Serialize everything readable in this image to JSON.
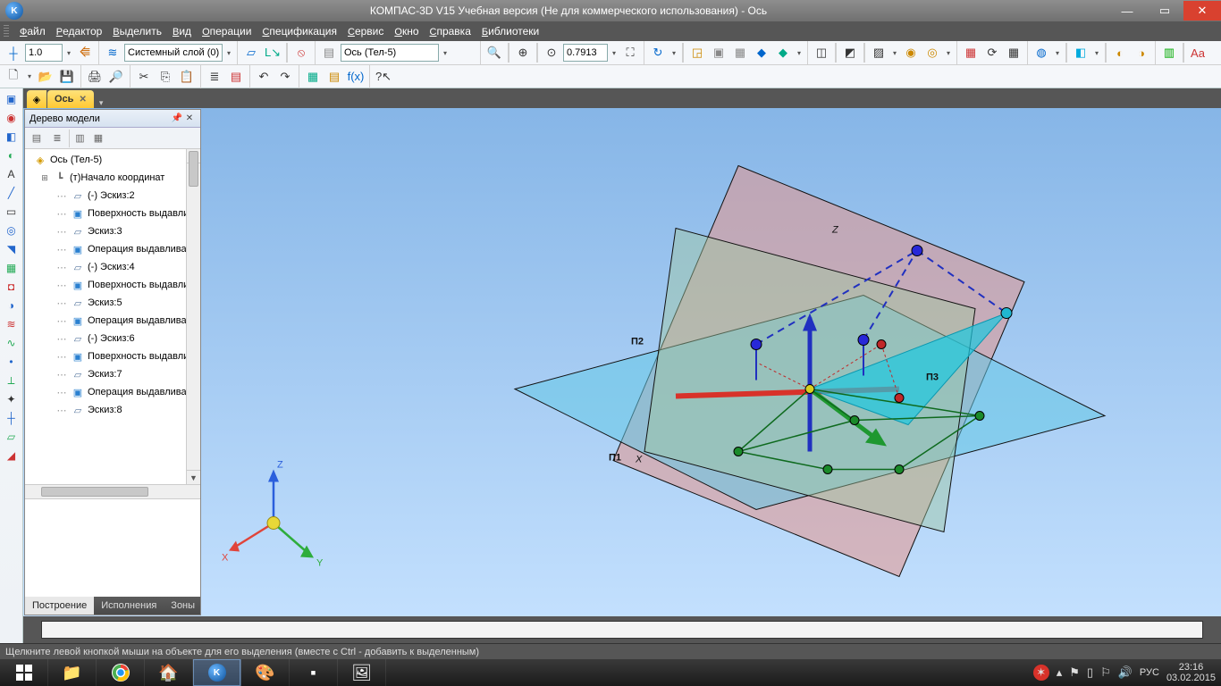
{
  "window": {
    "title": "КОМПАС-3D V15 Учебная версия (Не для коммерческого использования) - Ось"
  },
  "menu": [
    "Файл",
    "Редактор",
    "Выделить",
    "Вид",
    "Операции",
    "Спецификация",
    "Сервис",
    "Окно",
    "Справка",
    "Библиотеки"
  ],
  "toolbars": {
    "row1": {
      "scale_value": "1.0",
      "layer_text": "Системный слой (0)",
      "state_text": "Ось (Тел-5)",
      "zoom_value": "0.7913"
    }
  },
  "doc_tab": {
    "label": "Ось"
  },
  "tree": {
    "panel_title": "Дерево модели",
    "root": "Ось (Тел-5)",
    "items": [
      {
        "icon": "origin",
        "label": "(т)Начало координат",
        "exp": "⊞"
      },
      {
        "icon": "sketch",
        "label": "(-) Эскиз:2"
      },
      {
        "icon": "extr",
        "label": "Поверхность выдавли"
      },
      {
        "icon": "sketch",
        "label": "Эскиз:3"
      },
      {
        "icon": "extr",
        "label": "Операция выдавливан"
      },
      {
        "icon": "sketch",
        "label": "(-) Эскиз:4"
      },
      {
        "icon": "extr",
        "label": "Поверхность выдавли"
      },
      {
        "icon": "sketch",
        "label": "Эскиз:5"
      },
      {
        "icon": "extr",
        "label": "Операция выдавливан"
      },
      {
        "icon": "sketch",
        "label": "(-) Эскиз:6"
      },
      {
        "icon": "extr",
        "label": "Поверхность выдавли"
      },
      {
        "icon": "sketch",
        "label": "Эскиз:7"
      },
      {
        "icon": "extr",
        "label": "Операция выдавливан"
      },
      {
        "icon": "sketch",
        "label": "Эскиз:8"
      }
    ],
    "tabs": [
      "Построение",
      "Исполнения",
      "Зоны"
    ]
  },
  "viewport": {
    "triad": {
      "x_label": "X",
      "y_label": "Y",
      "z_label": "Z",
      "x_color": "#e0443a",
      "y_color": "#2ead3c",
      "z_color": "#2b5fdc"
    },
    "planes": {
      "xy_color": "rgba(100,200,230,0.55)",
      "xz_color": "rgba(230,150,140,0.55)",
      "yz_color": "rgba(160,200,160,0.55)"
    },
    "axis_labels": {
      "p1": "П1",
      "p2": "П2",
      "p3": "П3",
      "x": "X",
      "z": "Z"
    },
    "colors": {
      "red": "#d8322a",
      "blue": "#2030c0",
      "green": "#1e9830",
      "cyan": "#1cc8e0",
      "darkgreen": "#0e6a1e",
      "magenta": "#c030a0",
      "black": "#111",
      "node_blue": "#2828d8",
      "node_green": "#1a8a2a",
      "node_red": "#c02828",
      "node_cyan": "#20b8d0"
    }
  },
  "status": "Щелкните левой кнопкой мыши на объекте для его выделения (вместе с Ctrl - добавить к выделенным)",
  "taskbar": {
    "lang": "РУС",
    "time": "23:16",
    "date": "03.02.2015"
  }
}
